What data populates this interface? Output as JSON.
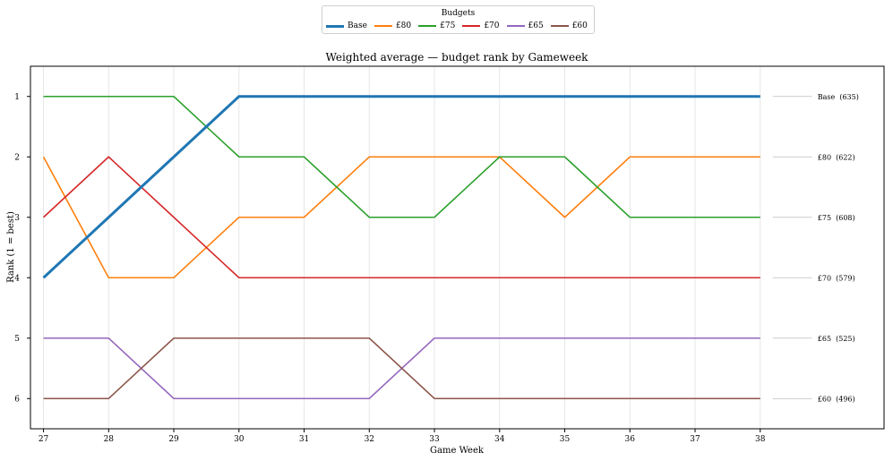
{
  "chart_data": {
    "type": "line",
    "title": "Weighted average — budget rank by Gameweek",
    "xlabel": "Game Week",
    "ylabel": "Rank (1 = best)",
    "x": [
      27,
      28,
      29,
      30,
      31,
      32,
      33,
      34,
      35,
      36,
      37,
      38
    ],
    "xlim": [
      26.8,
      39.9
    ],
    "ylim": [
      6.5,
      0.5
    ],
    "y_inverted": true,
    "yticks": [
      1,
      2,
      3,
      4,
      5,
      6
    ],
    "grid": "vertical",
    "legend": {
      "title": "Budgets",
      "placement": "top-center, outside plot"
    },
    "series": [
      {
        "name": "Base",
        "color": "#1f77b4",
        "emphasis": true,
        "end_label": "Base  (635)",
        "values": [
          4,
          3,
          2,
          1,
          1,
          1,
          1,
          1,
          1,
          1,
          1,
          1
        ]
      },
      {
        "name": "£80",
        "color": "#ff7f0e",
        "end_label": "£80  (622)",
        "values": [
          2,
          4,
          4,
          3,
          3,
          2,
          2,
          2,
          3,
          2,
          2,
          2
        ]
      },
      {
        "name": "£75",
        "color": "#2ca02c",
        "end_label": "£75  (608)",
        "values": [
          1,
          1,
          1,
          2,
          2,
          3,
          3,
          2,
          2,
          3,
          3,
          3
        ]
      },
      {
        "name": "£70",
        "color": "#d62728",
        "end_label": "£70  (579)",
        "values": [
          3,
          2,
          3,
          4,
          4,
          4,
          4,
          4,
          4,
          4,
          4,
          4
        ]
      },
      {
        "name": "£65",
        "color": "#9467bd",
        "end_label": "£65  (525)",
        "values": [
          5,
          5,
          6,
          6,
          6,
          6,
          5,
          5,
          5,
          5,
          5,
          5
        ]
      },
      {
        "name": "£60",
        "color": "#8c564b",
        "end_label": "£60  (496)",
        "values": [
          6,
          6,
          5,
          5,
          5,
          5,
          6,
          6,
          6,
          6,
          6,
          6
        ]
      }
    ]
  }
}
